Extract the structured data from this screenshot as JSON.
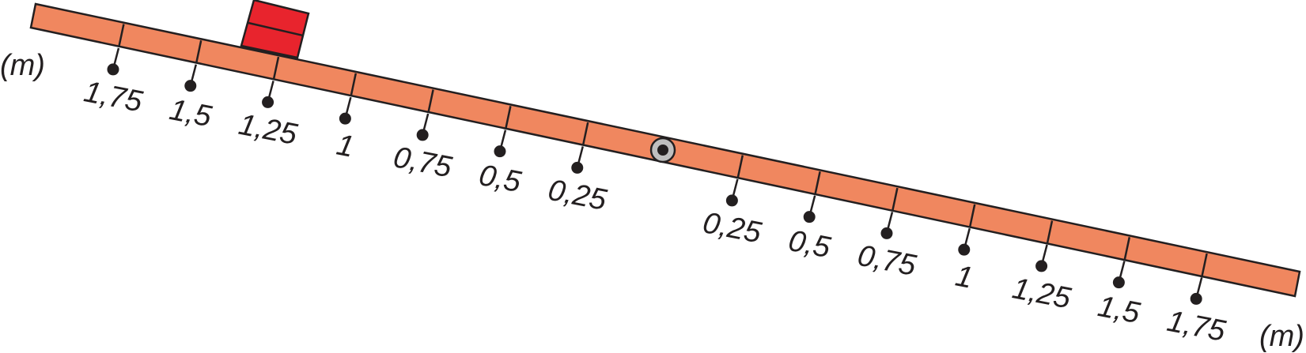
{
  "unit_label": "(m)",
  "beam": {
    "color": "#f0875f",
    "outline": "#231f20",
    "pivot_color": "#bfbfbf"
  },
  "weight": {
    "color": "#e8242d",
    "position_m": -1.25
  },
  "left_arm": {
    "ticks": [
      {
        "label": "0,25"
      },
      {
        "label": "0,5"
      },
      {
        "label": "0,75"
      },
      {
        "label": "1"
      },
      {
        "label": "1,25"
      },
      {
        "label": "1,5"
      },
      {
        "label": "1,75"
      }
    ]
  },
  "right_arm": {
    "ticks": [
      {
        "label": "0,25"
      },
      {
        "label": "0,5"
      },
      {
        "label": "0,75"
      },
      {
        "label": "1"
      },
      {
        "label": "1,25"
      },
      {
        "label": "1,5"
      },
      {
        "label": "1,75"
      }
    ]
  }
}
